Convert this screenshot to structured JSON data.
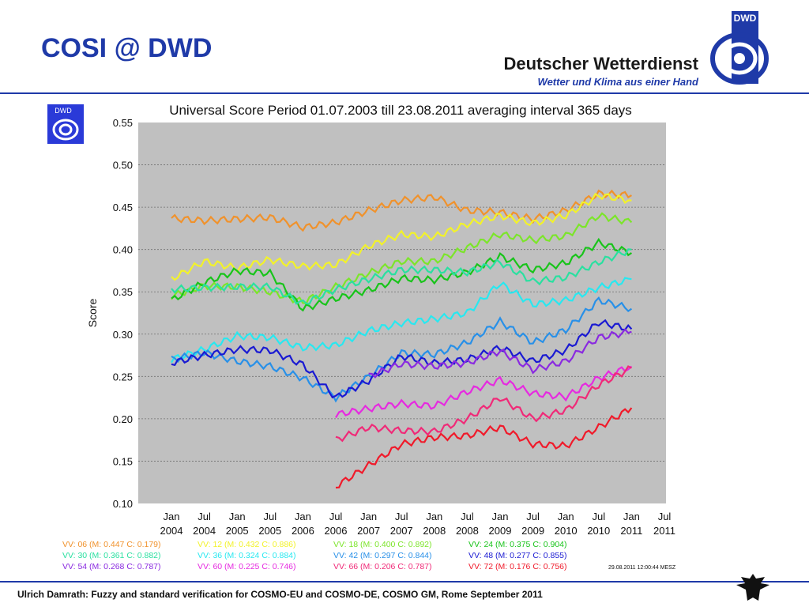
{
  "slide": {
    "title": "COSI @ DWD",
    "brand_name": "Deutscher Wetterdienst",
    "brand_tagline": "Wetter und Klima aus einer Hand",
    "logo_text": "DWD",
    "footer": "Ulrich Damrath: Fuzzy and standard verification for COSMO-EU and COSMO-DE, COSMO GM, Rome September 2011"
  },
  "chart_data": {
    "type": "line",
    "title": "Universal Score Period 01.07.2003 till 23.08.2011 averaging interval 365 days",
    "ylabel": "Score",
    "xlabel": "",
    "ylim": [
      0.1,
      0.55
    ],
    "yticks": [
      "0.10",
      "0.15",
      "0.20",
      "0.25",
      "0.30",
      "0.35",
      "0.40",
      "0.45",
      "0.50",
      "0.55"
    ],
    "xticks": [
      [
        "Jan",
        "2004"
      ],
      [
        "Jul",
        "2004"
      ],
      [
        "Jan",
        "2005"
      ],
      [
        "Jul",
        "2005"
      ],
      [
        "Jan",
        "2006"
      ],
      [
        "Jul",
        "2006"
      ],
      [
        "Jan",
        "2007"
      ],
      [
        "Jul",
        "2007"
      ],
      [
        "Jan",
        "2008"
      ],
      [
        "Jul",
        "2008"
      ],
      [
        "Jan",
        "2009"
      ],
      [
        "Jul",
        "2009"
      ],
      [
        "Jan",
        "2010"
      ],
      [
        "Jul",
        "2010"
      ],
      [
        "Jan",
        "2011"
      ],
      [
        "Jul",
        "2011"
      ]
    ],
    "x": [
      "2004-01",
      "2004-07",
      "2005-01",
      "2005-07",
      "2006-01",
      "2006-07",
      "2007-01",
      "2007-07",
      "2008-01",
      "2008-07",
      "2009-01",
      "2009-07",
      "2010-01",
      "2010-07",
      "2011-01",
      "2011-07"
    ],
    "grid": true,
    "timestamp": "29.08.2011 12:00:44 MESZ",
    "series": [
      {
        "name": "VV: 06 (M:  0.447 C:  0.179)",
        "color": "#f0922c",
        "values": [
          0.437,
          0.434,
          0.436,
          0.438,
          0.426,
          0.432,
          0.446,
          0.458,
          0.462,
          0.446,
          0.444,
          0.436,
          0.446,
          0.466,
          0.464,
          null
        ]
      },
      {
        "name": "VV: 12 (M:  0.432 C:  0.886)",
        "color": "#f2f22a",
        "values": [
          0.365,
          0.386,
          0.378,
          0.388,
          0.38,
          0.382,
          0.404,
          0.418,
          0.415,
          0.43,
          0.44,
          0.431,
          0.44,
          0.464,
          0.458,
          null
        ]
      },
      {
        "name": "VV: 18 (M:  0.400 C:  0.892)",
        "color": "#7ce52a",
        "values": [
          0.345,
          0.357,
          0.356,
          0.35,
          0.338,
          0.356,
          0.372,
          0.386,
          0.386,
          0.402,
          0.418,
          0.411,
          0.416,
          0.44,
          0.432,
          null
        ]
      },
      {
        "name": "VV: 24 (M:  0.375 C:  0.904)",
        "color": "#18c41a",
        "values": [
          0.34,
          0.361,
          0.375,
          0.372,
          0.33,
          0.342,
          0.352,
          0.366,
          0.364,
          0.373,
          0.392,
          0.376,
          0.384,
          0.408,
          0.396,
          null
        ]
      },
      {
        "name": "VV: 30 (M:  0.361 C:  0.882)",
        "color": "#2ae0a0",
        "values": [
          0.353,
          0.355,
          0.356,
          0.356,
          0.336,
          0.353,
          0.365,
          0.376,
          0.376,
          0.373,
          0.385,
          0.362,
          0.367,
          0.385,
          0.4,
          null
        ]
      },
      {
        "name": "VV: 36 (M:  0.324 C:  0.884)",
        "color": "#28e8f0",
        "values": [
          0.27,
          0.282,
          0.298,
          0.296,
          0.284,
          0.287,
          0.304,
          0.313,
          0.318,
          0.325,
          0.36,
          0.335,
          0.34,
          0.355,
          0.365,
          null
        ]
      },
      {
        "name": "VV: 42 (M:  0.297 C:  0.844)",
        "color": "#2890e8",
        "values": [
          0.27,
          0.278,
          0.268,
          0.262,
          0.248,
          0.225,
          0.25,
          0.278,
          0.276,
          0.29,
          0.315,
          0.29,
          0.305,
          0.34,
          0.33,
          null
        ]
      },
      {
        "name": "VV: 48 (M:  0.277 C:  0.855)",
        "color": "#1a1ad2",
        "values": [
          0.266,
          0.275,
          0.282,
          0.281,
          0.264,
          0.225,
          0.245,
          0.274,
          0.266,
          0.27,
          0.284,
          0.268,
          0.281,
          0.314,
          0.306,
          null
        ]
      },
      {
        "name": "VV: 54 (M:  0.268 C:  0.787)",
        "color": "#8a2ae0",
        "values": [
          null,
          null,
          null,
          null,
          null,
          null,
          0.25,
          0.265,
          0.262,
          0.266,
          0.28,
          0.258,
          0.268,
          0.296,
          0.303,
          null
        ]
      },
      {
        "name": "VV: 60 (M:  0.225 C:  0.746)",
        "color": "#e62ae0",
        "values": [
          null,
          null,
          null,
          null,
          null,
          0.205,
          0.212,
          0.218,
          0.215,
          0.232,
          0.246,
          0.23,
          0.226,
          0.248,
          0.262,
          null
        ]
      },
      {
        "name": "VV: 66 (M:  0.206 C:  0.787)",
        "color": "#f02a78",
        "values": [
          null,
          null,
          null,
          null,
          null,
          0.175,
          0.19,
          0.186,
          0.185,
          0.2,
          0.225,
          0.2,
          0.21,
          0.24,
          0.26,
          null
        ]
      },
      {
        "name": "VV: 72 (M:  0.176 C:  0.756)",
        "color": "#f01a2a",
        "values": [
          null,
          null,
          null,
          null,
          null,
          0.12,
          0.145,
          0.17,
          0.178,
          0.18,
          0.19,
          0.17,
          0.168,
          0.19,
          0.213,
          null
        ]
      }
    ]
  }
}
